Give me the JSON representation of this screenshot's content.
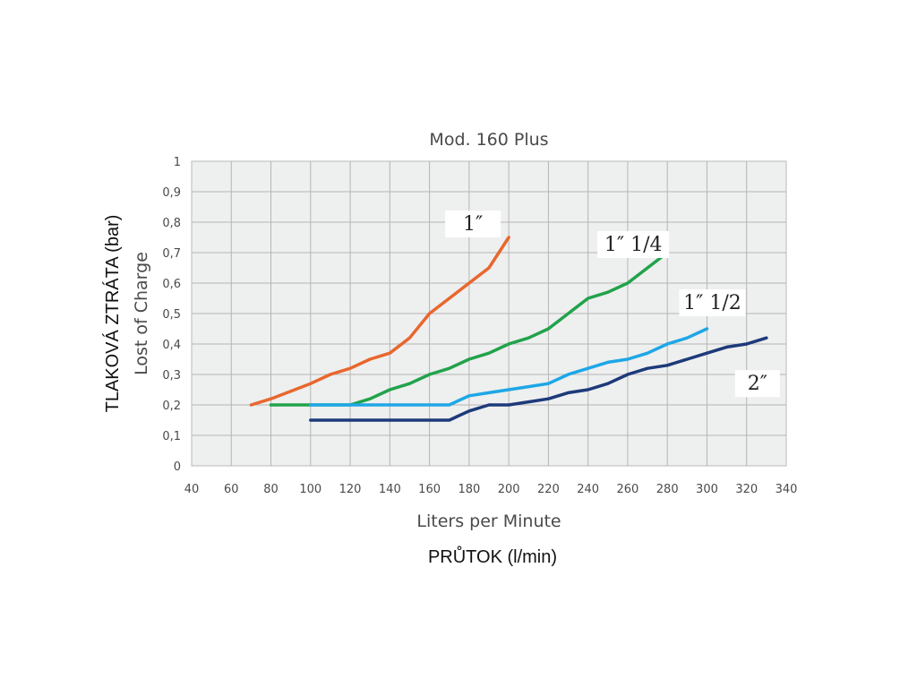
{
  "chart_data": {
    "type": "line",
    "title": "Mod. 160 Plus",
    "xlabel": "Liters per Minute",
    "xlabel_secondary": "PRŮTOK (l/min)",
    "ylabel": "Lost of Charge",
    "ylabel_secondary": "TLAKOVÁ ZTRÁTA (bar)",
    "xlim": [
      40,
      340
    ],
    "ylim": [
      0,
      1
    ],
    "x_ticks": [
      "40",
      "60",
      "80",
      "100",
      "120",
      "140",
      "160",
      "180",
      "200",
      "220",
      "240",
      "260",
      "280",
      "300",
      "320",
      "340"
    ],
    "y_ticks": [
      "0",
      "0,1",
      "0,2",
      "0,3",
      "0,4",
      "0,5",
      "0,6",
      "0,7",
      "0,8",
      "0,9",
      "1"
    ],
    "grid": true,
    "legend": "none (labels placed next to curves)",
    "series": [
      {
        "name": "1″",
        "color": "#e8672e",
        "points": [
          [
            70,
            0.2
          ],
          [
            80,
            0.22
          ],
          [
            90,
            0.245
          ],
          [
            100,
            0.27
          ],
          [
            110,
            0.3
          ],
          [
            120,
            0.32
          ],
          [
            130,
            0.35
          ],
          [
            140,
            0.37
          ],
          [
            150,
            0.42
          ],
          [
            160,
            0.5
          ],
          [
            170,
            0.55
          ],
          [
            180,
            0.6
          ],
          [
            190,
            0.65
          ],
          [
            200,
            0.75
          ]
        ]
      },
      {
        "name": "1″ 1/4",
        "color": "#21a34b",
        "points": [
          [
            80,
            0.2
          ],
          [
            100,
            0.2
          ],
          [
            120,
            0.2
          ],
          [
            130,
            0.22
          ],
          [
            140,
            0.25
          ],
          [
            150,
            0.27
          ],
          [
            160,
            0.3
          ],
          [
            170,
            0.32
          ],
          [
            180,
            0.35
          ],
          [
            190,
            0.37
          ],
          [
            200,
            0.4
          ],
          [
            210,
            0.42
          ],
          [
            220,
            0.45
          ],
          [
            230,
            0.5
          ],
          [
            240,
            0.55
          ],
          [
            250,
            0.57
          ],
          [
            260,
            0.6
          ],
          [
            270,
            0.65
          ],
          [
            280,
            0.7
          ]
        ]
      },
      {
        "name": "1″ 1/2",
        "color": "#1ea7e6",
        "points": [
          [
            100,
            0.2
          ],
          [
            120,
            0.2
          ],
          [
            140,
            0.2
          ],
          [
            160,
            0.2
          ],
          [
            170,
            0.2
          ],
          [
            180,
            0.23
          ],
          [
            190,
            0.24
          ],
          [
            200,
            0.25
          ],
          [
            210,
            0.26
          ],
          [
            220,
            0.27
          ],
          [
            230,
            0.3
          ],
          [
            240,
            0.32
          ],
          [
            250,
            0.34
          ],
          [
            260,
            0.35
          ],
          [
            270,
            0.37
          ],
          [
            280,
            0.4
          ],
          [
            290,
            0.42
          ],
          [
            300,
            0.45
          ]
        ]
      },
      {
        "name": "2″",
        "color": "#1d3a7a",
        "points": [
          [
            100,
            0.15
          ],
          [
            120,
            0.15
          ],
          [
            140,
            0.15
          ],
          [
            160,
            0.15
          ],
          [
            170,
            0.15
          ],
          [
            180,
            0.18
          ],
          [
            190,
            0.2
          ],
          [
            200,
            0.2
          ],
          [
            210,
            0.21
          ],
          [
            220,
            0.22
          ],
          [
            230,
            0.24
          ],
          [
            240,
            0.25
          ],
          [
            250,
            0.27
          ],
          [
            260,
            0.3
          ],
          [
            270,
            0.32
          ],
          [
            280,
            0.33
          ],
          [
            290,
            0.35
          ],
          [
            300,
            0.37
          ],
          [
            310,
            0.39
          ],
          [
            320,
            0.4
          ],
          [
            330,
            0.42
          ]
        ]
      }
    ]
  }
}
